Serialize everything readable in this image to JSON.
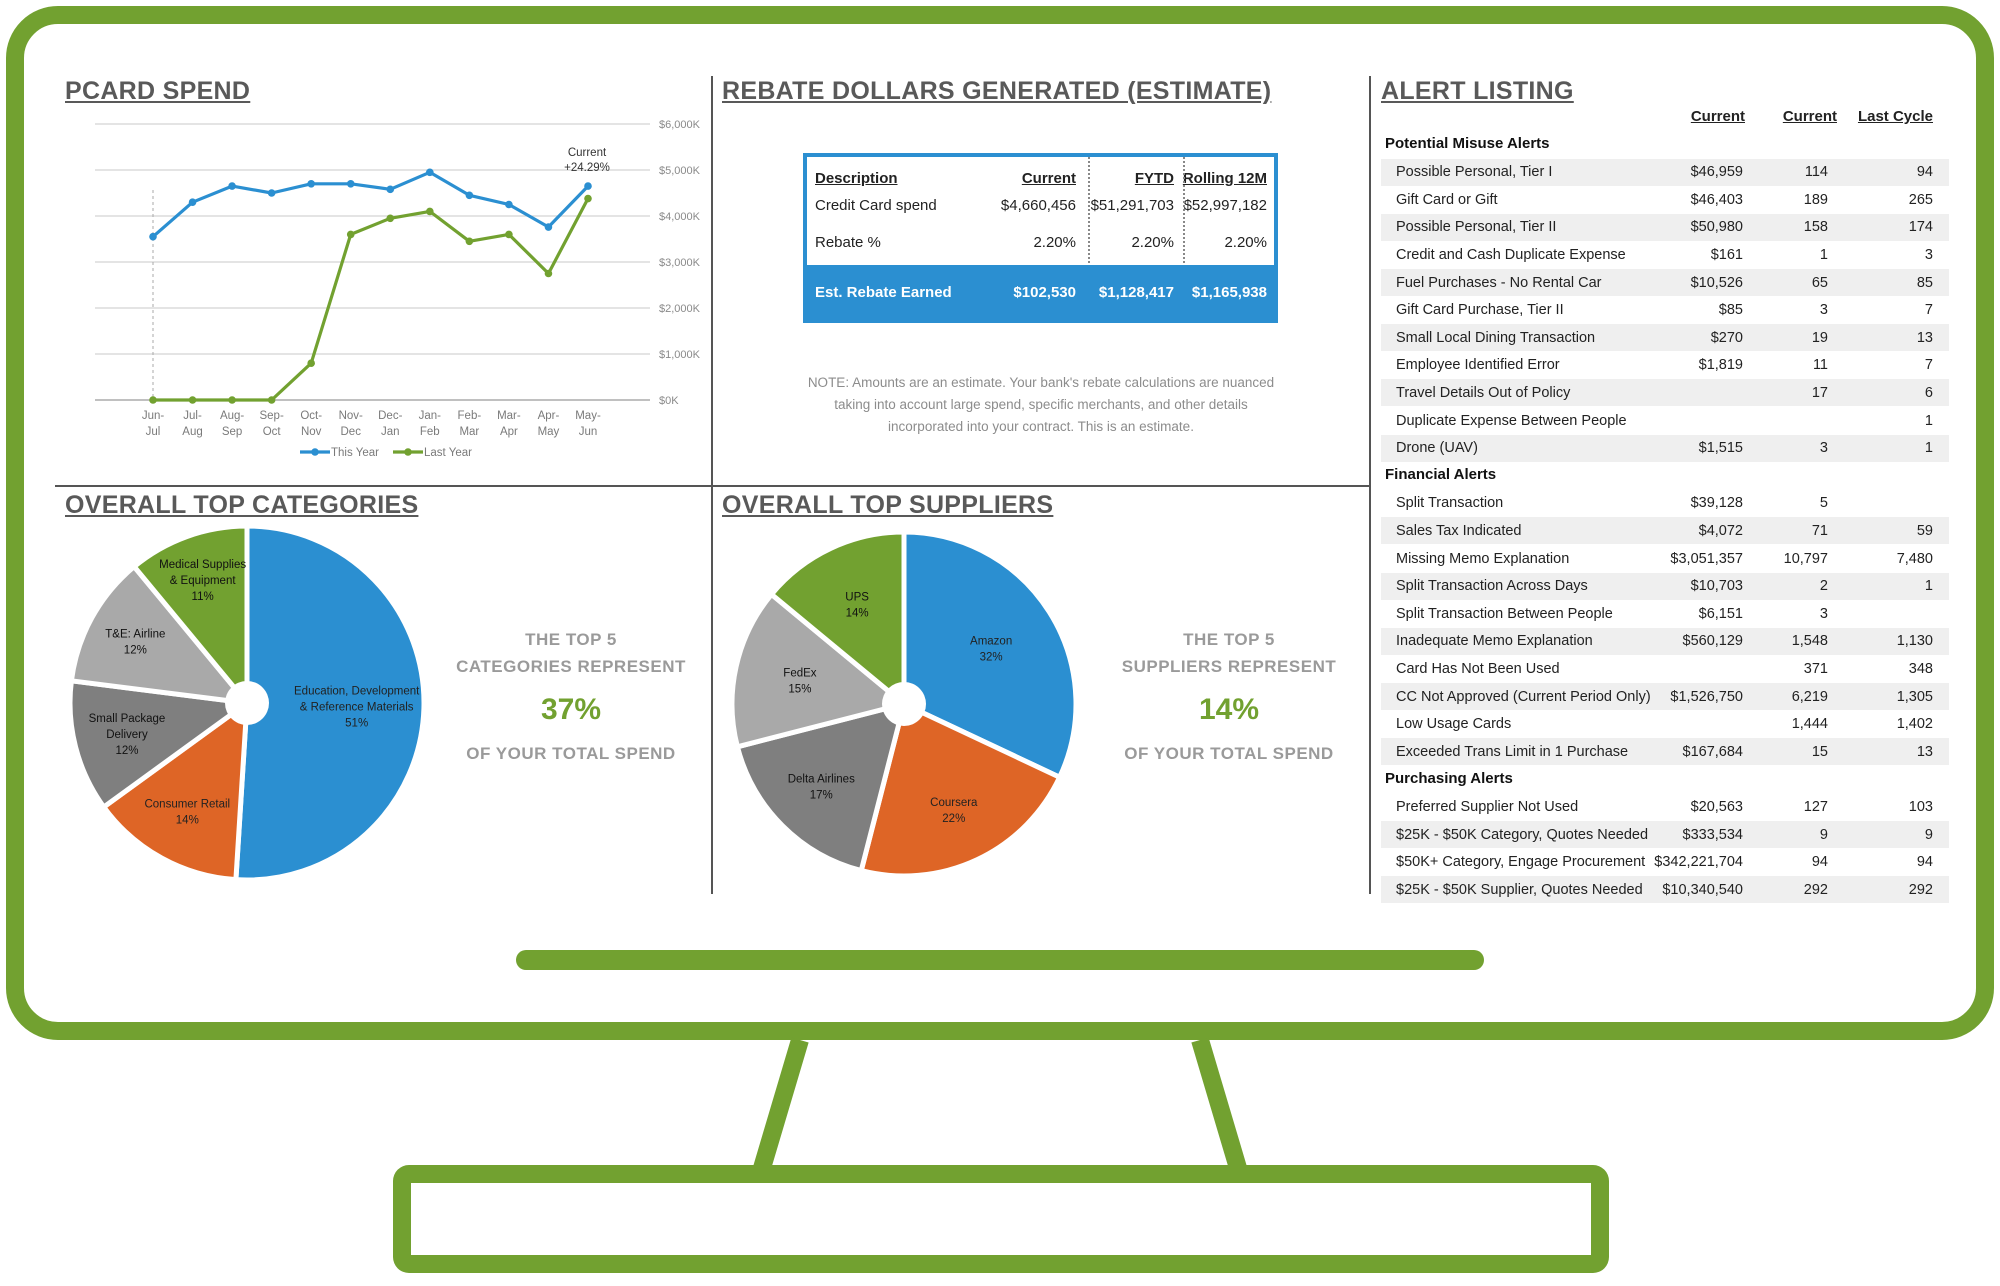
{
  "colors": {
    "frame": "#72a130",
    "blue": "#2b8fd1",
    "green": "#72a130",
    "orange": "#de6526",
    "gray_dark": "#7f7f7f",
    "gray_mid": "#9e9e9e",
    "gray_light": "#c5c5c5"
  },
  "pcard": {
    "title": "PCARD SPEND",
    "current_label": "Current",
    "current_change": "+24.29%"
  },
  "chart_data": [
    {
      "type": "line",
      "title": "PCARD SPEND",
      "categories": [
        "Jun-Jul",
        "Jul-Aug",
        "Aug-Sep",
        "Sep-Oct",
        "Oct-Nov",
        "Nov-Dec",
        "Dec-Jan",
        "Jan-Feb",
        "Feb-Mar",
        "Mar-Apr",
        "Apr-May",
        "May-Jun"
      ],
      "category_lines": [
        [
          "Jun-",
          "Jul"
        ],
        [
          "Jul-",
          "Aug"
        ],
        [
          "Aug-",
          "Sep"
        ],
        [
          "Sep-",
          "Oct"
        ],
        [
          "Oct-",
          "Nov"
        ],
        [
          "Nov-",
          "Dec"
        ],
        [
          "Dec-",
          "Jan"
        ],
        [
          "Jan-",
          "Feb"
        ],
        [
          "Feb-",
          "Mar"
        ],
        [
          "Mar-",
          "Apr"
        ],
        [
          "Apr-",
          "May"
        ],
        [
          "May-",
          "Jun"
        ]
      ],
      "series": [
        {
          "name": "This Year",
          "color": "#2b8fd1",
          "values": [
            3550,
            4300,
            4650,
            4500,
            4700,
            4700,
            4580,
            4950,
            4450,
            4250,
            3760,
            4650
          ]
        },
        {
          "name": "Last Year",
          "color": "#72a130",
          "values": [
            0,
            0,
            0,
            0,
            800,
            3600,
            3950,
            4100,
            3450,
            3600,
            2750,
            4380
          ]
        }
      ],
      "y_ticks": [
        0,
        1000,
        2000,
        3000,
        4000,
        5000,
        6000
      ],
      "y_tick_labels": [
        "$0K",
        "$1,000K",
        "$2,000K",
        "$3,000K",
        "$4,000K",
        "$5,000K",
        "$6,000K"
      ],
      "ylim": [
        0,
        6000
      ],
      "y_axis_side": "right",
      "grid": true,
      "legend": "bottom"
    },
    {
      "type": "pie",
      "title": "OVERALL TOP CATEGORIES",
      "slices": [
        {
          "lines": [
            "Education, Development",
            "& Reference Materials",
            "51%"
          ],
          "value": 51,
          "color": "#2b8fd1",
          "text_color": "#222"
        },
        {
          "lines": [
            "Consumer Retail",
            "14%"
          ],
          "value": 14,
          "color": "#de6526",
          "text_color": "#222"
        },
        {
          "lines": [
            "Small Package",
            "Delivery",
            "12%"
          ],
          "value": 12,
          "color": "#7f7f7f",
          "text_color": "#111"
        },
        {
          "lines": [
            "T&E: Airline",
            "12%"
          ],
          "value": 12,
          "color": "#a9a9a9",
          "text_color": "#111"
        },
        {
          "lines": [
            "Medical Supplies",
            "& Equipment",
            "11%"
          ],
          "value": 11,
          "color": "#72a130",
          "text_color": "#111"
        }
      ]
    },
    {
      "type": "pie",
      "title": "OVERALL TOP SUPPLIERS",
      "slices": [
        {
          "lines": [
            "Amazon",
            "32%"
          ],
          "value": 32,
          "color": "#2b8fd1",
          "text_color": "#222"
        },
        {
          "lines": [
            "Coursera",
            "22%"
          ],
          "value": 22,
          "color": "#de6526",
          "text_color": "#222"
        },
        {
          "lines": [
            "Delta Airlines",
            "17%"
          ],
          "value": 17,
          "color": "#7f7f7f",
          "text_color": "#111"
        },
        {
          "lines": [
            "FedEx",
            "15%"
          ],
          "value": 15,
          "color": "#a9a9a9",
          "text_color": "#111"
        },
        {
          "lines": [
            "UPS",
            "14%"
          ],
          "value": 14,
          "color": "#72a130",
          "text_color": "#111"
        }
      ]
    }
  ],
  "rebate": {
    "title": "REBATE DOLLARS GENERATED (ESTIMATE)",
    "headers": [
      "Description",
      "Current",
      "FYTD",
      "Rolling 12M"
    ],
    "rows": [
      [
        "Credit Card spend",
        "$4,660,456",
        "$51,291,703",
        "$52,997,182"
      ],
      [
        "Rebate %",
        "2.20%",
        "2.20%",
        "2.20%"
      ]
    ],
    "earned": [
      "Est. Rebate Earned",
      "$102,530",
      "$1,128,417",
      "$1,165,938"
    ],
    "note": "NOTE: Amounts are an estimate.  Your bank's rebate calculations are nuanced taking into account large spend, specific merchants, and other details incorporated into your contract. This is an estimate."
  },
  "categories": {
    "title": "OVERALL TOP CATEGORIES",
    "callout_line1": "THE TOP 5",
    "callout_line2": "CATEGORIES REPRESENT",
    "callout_pct": "37%",
    "callout_line3": "OF YOUR TOTAL SPEND"
  },
  "suppliers": {
    "title": "OVERALL TOP SUPPLIERS",
    "callout_line1": "THE TOP 5",
    "callout_line2": "SUPPLIERS REPRESENT",
    "callout_pct": "14%",
    "callout_line3": "OF YOUR TOTAL SPEND"
  },
  "alerts": {
    "title": "ALERT LISTING",
    "headers": [
      "Current",
      "Current",
      "Last Cycle"
    ],
    "groups": [
      {
        "name": "Potential Misuse Alerts",
        "rows": [
          [
            "Possible Personal, Tier I",
            "$46,959",
            "114",
            "94"
          ],
          [
            "Gift Card or Gift",
            "$46,403",
            "189",
            "265"
          ],
          [
            "Possible Personal, Tier II",
            "$50,980",
            "158",
            "174"
          ],
          [
            "Credit and Cash Duplicate Expense",
            "$161",
            "1",
            "3"
          ],
          [
            "Fuel Purchases - No Rental Car",
            "$10,526",
            "65",
            "85"
          ],
          [
            "Gift Card Purchase, Tier II",
            "$85",
            "3",
            "7"
          ],
          [
            "Small Local Dining Transaction",
            "$270",
            "19",
            "13"
          ],
          [
            "Employee Identified Error",
            "$1,819",
            "11",
            "7"
          ],
          [
            "Travel Details Out of Policy",
            "",
            "17",
            "6"
          ],
          [
            "Duplicate Expense Between People",
            "",
            "",
            "1"
          ],
          [
            "Drone (UAV)",
            "$1,515",
            "3",
            "1"
          ]
        ]
      },
      {
        "name": "Financial Alerts",
        "rows": [
          [
            "Split Transaction",
            "$39,128",
            "5",
            ""
          ],
          [
            "Sales Tax Indicated",
            "$4,072",
            "71",
            "59"
          ],
          [
            "Missing Memo Explanation",
            "$3,051,357",
            "10,797",
            "7,480"
          ],
          [
            "Split Transaction Across Days",
            "$10,703",
            "2",
            "1"
          ],
          [
            "Split Transaction Between People",
            "$6,151",
            "3",
            ""
          ],
          [
            "Inadequate Memo Explanation",
            "$560,129",
            "1,548",
            "1,130"
          ],
          [
            "Card Has Not Been Used",
            "",
            "371",
            "348"
          ],
          [
            "CC Not Approved (Current Period Only)",
            "$1,526,750",
            "6,219",
            "1,305"
          ],
          [
            "Low Usage Cards",
            "",
            "1,444",
            "1,402"
          ],
          [
            "Exceeded Trans Limit in 1 Purchase",
            "$167,684",
            "15",
            "13"
          ]
        ]
      },
      {
        "name": "Purchasing Alerts",
        "rows": [
          [
            "Preferred Supplier Not Used",
            "$20,563",
            "127",
            "103"
          ],
          [
            "$25K - $50K Category, Quotes Needed",
            "$333,534",
            "9",
            "9"
          ],
          [
            "$50K+ Category, Engage Procurement",
            "$342,221,704",
            "94",
            "94"
          ],
          [
            "$25K - $50K Supplier, Quotes Needed",
            "$10,340,540",
            "292",
            "292"
          ]
        ]
      }
    ]
  }
}
